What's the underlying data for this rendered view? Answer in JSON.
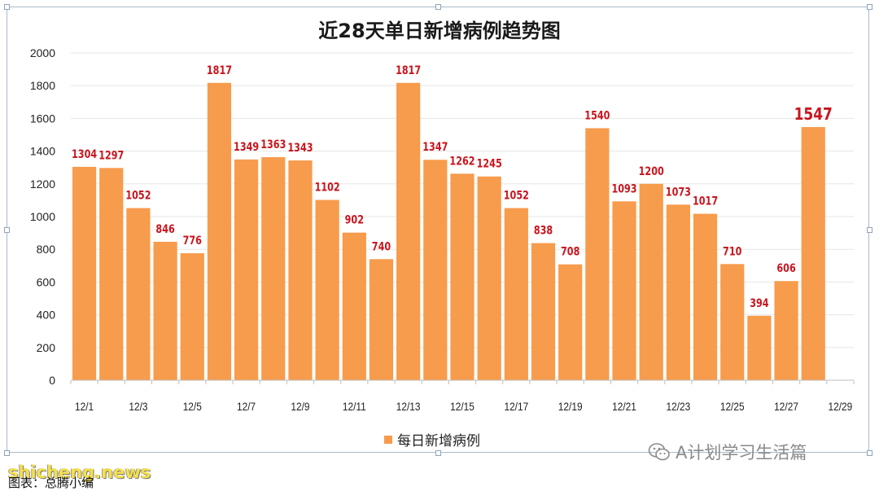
{
  "chart_data": {
    "type": "bar",
    "title": "近28天单日新增病例趋势图",
    "series": [
      {
        "name": "每日新增病例",
        "color": "#F79B4C",
        "values": [
          1304,
          1297,
          1052,
          846,
          776,
          1817,
          1349,
          1363,
          1343,
          1102,
          902,
          740,
          1817,
          1347,
          1262,
          1245,
          1052,
          838,
          708,
          1540,
          1093,
          1200,
          1073,
          1017,
          710,
          394,
          606,
          1547
        ]
      }
    ],
    "categories": [
      "12/1",
      "12/2",
      "12/3",
      "12/4",
      "12/5",
      "12/6",
      "12/7",
      "12/8",
      "12/9",
      "12/10",
      "12/11",
      "12/12",
      "12/13",
      "12/14",
      "12/15",
      "12/16",
      "12/17",
      "12/18",
      "12/19",
      "12/20",
      "12/21",
      "12/22",
      "12/23",
      "12/24",
      "12/25",
      "12/26",
      "12/27",
      "12/28"
    ],
    "x_tick_labels": [
      "12/1",
      "12/3",
      "12/5",
      "12/7",
      "12/9",
      "12/11",
      "12/13",
      "12/15",
      "12/17",
      "12/19",
      "12/21",
      "12/23",
      "12/25",
      "12/27",
      "12/29"
    ],
    "y_ticks": [
      0,
      200,
      400,
      600,
      800,
      1000,
      1200,
      1400,
      1600,
      1800,
      2000
    ],
    "ylim": [
      0,
      2000
    ],
    "xlabel": "",
    "ylabel": "",
    "grid": true,
    "legend_position": "bottom",
    "highlight_last_label": true,
    "label_color": "#C9151E"
  },
  "watermark": "A计划学习生活篇",
  "site_logo": "shicheng.news",
  "source_note": "图表：总腾小编"
}
